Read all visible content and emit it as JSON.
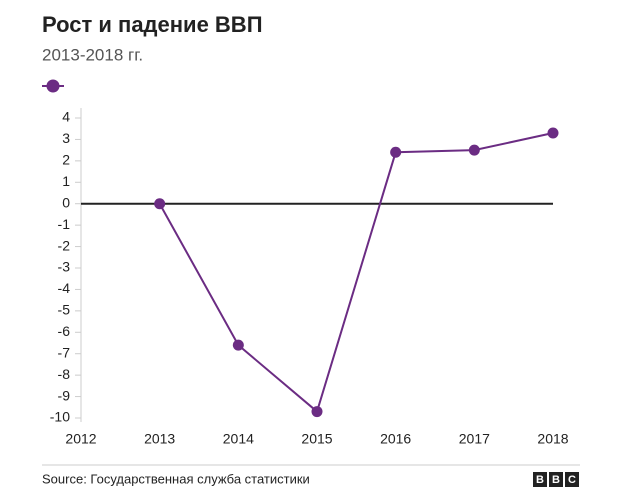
{
  "chart_data": {
    "type": "line",
    "title": "Рост и падение ВВП",
    "subtitle": "2013-2018 гг.",
    "x": [
      2013,
      2014,
      2015,
      2016,
      2017,
      2018
    ],
    "series": [
      {
        "color": "#6b2c83",
        "values": [
          0,
          -6.6,
          -9.7,
          2.4,
          2.5,
          3.3
        ]
      }
    ],
    "xlim": [
      2012,
      2018
    ],
    "xticks": [
      2012,
      2013,
      2014,
      2015,
      2016,
      2017,
      2018
    ],
    "ylim": [
      -10,
      4
    ],
    "yticks": [
      -10,
      -9,
      -8,
      -7,
      -6,
      -5,
      -4,
      -3,
      -2,
      -1,
      0,
      1,
      2,
      3,
      4
    ],
    "source": "Source: Государственная служба статистики",
    "logo": [
      "B",
      "B",
      "C"
    ]
  }
}
